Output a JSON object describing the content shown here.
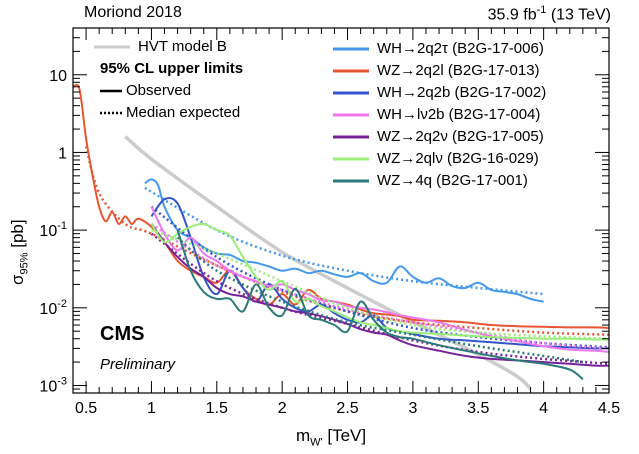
{
  "header": {
    "left_text": "Moriond 2018",
    "lumi_value": "35.9 fb",
    "lumi_exp": "-1",
    "lumi_energy": " (13 TeV)"
  },
  "labels": {
    "experiment": "CMS",
    "status": "Preliminary"
  },
  "legend_left": {
    "hvt": "HVT model B",
    "heading": "95% CL upper limits",
    "observed": "Observed",
    "expected": "Median expected"
  },
  "chart_data": {
    "type": "line",
    "title": "",
    "xlabel": "m_W' [TeV]",
    "xlabel_main": "m",
    "xlabel_sub": "W'",
    "xlabel_unit": " [TeV]",
    "ylabel": "σ_95% [pb]",
    "ylabel_main": "σ",
    "ylabel_sub": "95%",
    "ylabel_unit": " [pb]",
    "xlim": [
      0.4,
      4.5
    ],
    "ylim": [
      0.0008,
      40
    ],
    "yscale": "log",
    "x_ticks": [
      0.5,
      1,
      1.5,
      2,
      2.5,
      3,
      3.5,
      4,
      4.5
    ],
    "y_ticks": [
      {
        "v": 0.001,
        "base": "10",
        "exp": "-3"
      },
      {
        "v": 0.01,
        "base": "10",
        "exp": "-2"
      },
      {
        "v": 0.1,
        "base": "10",
        "exp": "-1"
      },
      {
        "v": 1,
        "base": "1",
        "exp": ""
      },
      {
        "v": 10,
        "base": "10",
        "exp": ""
      }
    ],
    "hvt": {
      "name": "HVT model B",
      "color": "#cccccc",
      "x": [
        0.8,
        1.0,
        1.5,
        2.0,
        2.5,
        3.0,
        3.5,
        3.8,
        3.9
      ],
      "y": [
        1.6,
        0.82,
        0.2,
        0.052,
        0.018,
        0.0066,
        0.0025,
        0.0013,
        0.0009
      ]
    },
    "series": [
      {
        "name": "WH→2q2τ (B2G-17-006)",
        "color": "#4499ee",
        "obs": {
          "x": [
            0.95,
            1.0,
            1.05,
            1.1,
            1.2,
            1.3,
            1.4,
            1.5,
            1.6,
            1.7,
            1.8,
            1.9,
            2.0,
            2.1,
            2.2,
            2.3,
            2.4,
            2.5,
            2.6,
            2.7,
            2.8,
            2.9,
            3.0,
            3.1,
            3.2,
            3.3,
            3.4,
            3.5,
            3.6,
            3.7,
            3.8,
            3.9,
            4.0
          ],
          "y": [
            0.4,
            0.45,
            0.38,
            0.2,
            0.1,
            0.08,
            0.06,
            0.05,
            0.048,
            0.04,
            0.038,
            0.034,
            0.03,
            0.032,
            0.028,
            0.03,
            0.027,
            0.025,
            0.028,
            0.022,
            0.021,
            0.034,
            0.025,
            0.021,
            0.024,
            0.019,
            0.018,
            0.021,
            0.017,
            0.016,
            0.015,
            0.013,
            0.012
          ]
        },
        "exp": {
          "x": [
            0.95,
            1.5,
            2.0,
            2.5,
            3.0,
            3.5,
            4.0
          ],
          "y": [
            0.35,
            0.1,
            0.047,
            0.03,
            0.022,
            0.018,
            0.015
          ]
        }
      },
      {
        "name": "WZ→2q2l (B2G-17-013)",
        "color": "#e85533",
        "obs": {
          "x": [
            0.4,
            0.45,
            0.5,
            0.55,
            0.6,
            0.65,
            0.7,
            0.75,
            0.8,
            0.85,
            0.9,
            1.0,
            1.1,
            1.2,
            1.3,
            1.4,
            1.5,
            1.6,
            1.7,
            1.8,
            1.9,
            2.0,
            2.1,
            2.2,
            2.3,
            2.4,
            2.5,
            2.6,
            2.7,
            2.8,
            2.9,
            3.0,
            3.2,
            3.4,
            3.6,
            3.8,
            4.0,
            4.2,
            4.4,
            4.5
          ],
          "y": [
            7,
            6.5,
            1.5,
            0.5,
            0.2,
            0.13,
            0.17,
            0.12,
            0.15,
            0.12,
            0.14,
            0.11,
            0.07,
            0.04,
            0.03,
            0.025,
            0.021,
            0.03,
            0.018,
            0.013,
            0.011,
            0.015,
            0.011,
            0.017,
            0.013,
            0.012,
            0.011,
            0.0095,
            0.0085,
            0.0082,
            0.0078,
            0.007,
            0.0068,
            0.0065,
            0.006,
            0.0058,
            0.0057,
            0.0056,
            0.0056,
            0.0055
          ]
        },
        "exp": {
          "x": [
            0.5,
            0.6,
            0.8,
            1.0,
            1.5,
            2.0,
            2.5,
            3.0,
            3.5,
            4.0,
            4.5
          ],
          "y": [
            1.2,
            0.3,
            0.12,
            0.09,
            0.035,
            0.016,
            0.009,
            0.0065,
            0.0055,
            0.0048,
            0.0045
          ]
        }
      },
      {
        "name": "WH→2q2b (B2G-17-002)",
        "color": "#3355cc",
        "obs": {
          "x": [
            1.0,
            1.1,
            1.2,
            1.3,
            1.4,
            1.5,
            1.6,
            1.7,
            1.8,
            1.9,
            2.0,
            2.1,
            2.2,
            2.3,
            2.4,
            2.5,
            2.6,
            2.7,
            2.8,
            2.9,
            3.0,
            3.2,
            3.4,
            3.6,
            3.8,
            4.0,
            4.2,
            4.4,
            4.5
          ],
          "y": [
            0.15,
            0.25,
            0.22,
            0.08,
            0.025,
            0.015,
            0.03,
            0.018,
            0.012,
            0.02,
            0.013,
            0.01,
            0.009,
            0.011,
            0.0085,
            0.007,
            0.0065,
            0.008,
            0.0055,
            0.005,
            0.0046,
            0.004,
            0.0038,
            0.0036,
            0.0034,
            0.0032,
            0.0031,
            0.003,
            0.003
          ]
        },
        "exp": {
          "x": [
            1.0,
            1.5,
            2.0,
            2.5,
            3.0,
            3.5,
            4.0,
            4.5
          ],
          "y": [
            0.2,
            0.045,
            0.017,
            0.009,
            0.0055,
            0.0042,
            0.0035,
            0.0031
          ]
        }
      },
      {
        "name": "WH→lν2b (B2G-17-004)",
        "color": "#ee77ee",
        "obs": {
          "x": [
            1.0,
            1.1,
            1.2,
            1.3,
            1.4,
            1.5,
            1.6,
            1.7,
            1.8,
            1.9,
            2.0,
            2.1,
            2.2,
            2.3,
            2.4,
            2.5,
            2.6,
            2.7,
            2.8,
            2.9,
            3.0,
            3.2,
            3.4,
            3.6,
            3.8,
            4.0,
            4.2,
            4.4,
            4.5
          ],
          "y": [
            0.2,
            0.09,
            0.055,
            0.08,
            0.05,
            0.04,
            0.03,
            0.025,
            0.022,
            0.019,
            0.02,
            0.017,
            0.015,
            0.0125,
            0.012,
            0.0105,
            0.01,
            0.0095,
            0.0088,
            0.008,
            0.0075,
            0.0065,
            0.0052,
            0.0043,
            0.0037,
            0.0032,
            0.0029,
            0.0028,
            0.0027
          ]
        },
        "exp": {
          "x": [
            1.0,
            1.5,
            2.0,
            2.5,
            3.0,
            3.5,
            4.0,
            4.5
          ],
          "y": [
            0.12,
            0.035,
            0.017,
            0.0095,
            0.0065,
            0.0048,
            0.0035,
            0.003
          ]
        }
      },
      {
        "name": "WZ→2q2ν (B2G-17-005)",
        "color": "#772299",
        "obs": {
          "x": [
            1.0,
            1.1,
            1.2,
            1.3,
            1.4,
            1.5,
            1.6,
            1.7,
            1.8,
            1.9,
            2.0,
            2.1,
            2.2,
            2.3,
            2.4,
            2.5,
            2.6,
            2.7,
            2.8,
            2.9,
            3.0,
            3.2,
            3.4,
            3.6,
            3.8,
            4.0,
            4.2,
            4.4,
            4.5
          ],
          "y": [
            0.12,
            0.07,
            0.045,
            0.032,
            0.025,
            0.018,
            0.015,
            0.014,
            0.012,
            0.011,
            0.01,
            0.009,
            0.0085,
            0.0078,
            0.007,
            0.0062,
            0.0053,
            0.0048,
            0.0045,
            0.0038,
            0.0033,
            0.0028,
            0.0024,
            0.0022,
            0.0021,
            0.002,
            0.0019,
            0.0018,
            0.0018
          ]
        },
        "exp": {
          "x": [
            1.0,
            1.5,
            2.0,
            2.5,
            3.0,
            3.5,
            4.0,
            4.5
          ],
          "y": [
            0.09,
            0.022,
            0.01,
            0.0062,
            0.0038,
            0.0027,
            0.0022,
            0.0019
          ]
        }
      },
      {
        "name": "WZ→2qlν (B2G-16-029)",
        "color": "#99ee77",
        "obs": {
          "x": [
            1.0,
            1.1,
            1.2,
            1.3,
            1.4,
            1.5,
            1.6,
            1.7,
            1.8,
            1.9,
            2.0,
            2.1,
            2.2,
            2.3,
            2.4,
            2.5,
            2.6,
            2.7,
            2.8,
            2.9,
            3.0,
            3.2,
            3.4,
            3.6,
            3.8,
            4.0,
            4.2,
            4.4,
            4.5
          ],
          "y": [
            0.12,
            0.07,
            0.09,
            0.11,
            0.12,
            0.1,
            0.085,
            0.045,
            0.025,
            0.017,
            0.022,
            0.012,
            0.013,
            0.0105,
            0.009,
            0.0075,
            0.0065,
            0.006,
            0.0055,
            0.005,
            0.0048,
            0.0046,
            0.0044,
            0.0042,
            0.0041,
            0.004,
            0.004,
            0.0039,
            0.0039
          ]
        },
        "exp": {
          "x": [
            1.0,
            1.5,
            2.0,
            2.5,
            3.0,
            3.5,
            4.0,
            4.5
          ],
          "y": [
            0.1,
            0.05,
            0.022,
            0.01,
            0.006,
            0.0048,
            0.0043,
            0.004
          ]
        }
      },
      {
        "name": "WZ→4q (B2G-17-001)",
        "color": "#2a7a7a",
        "obs": {
          "x": [
            1.2,
            1.3,
            1.4,
            1.5,
            1.6,
            1.7,
            1.8,
            1.9,
            2.0,
            2.1,
            2.2,
            2.3,
            2.4,
            2.5,
            2.6,
            2.7,
            2.8,
            2.9,
            3.0,
            3.2,
            3.4,
            3.6,
            3.8,
            4.0,
            4.2,
            4.3
          ],
          "y": [
            0.1,
            0.03,
            0.016,
            0.013,
            0.013,
            0.009,
            0.02,
            0.01,
            0.008,
            0.0175,
            0.008,
            0.007,
            0.006,
            0.005,
            0.012,
            0.007,
            0.0048,
            0.0042,
            0.004,
            0.0033,
            0.0028,
            0.0024,
            0.0021,
            0.0019,
            0.0016,
            0.0012
          ]
        },
        "exp": {
          "x": [
            1.2,
            1.5,
            2.0,
            2.5,
            3.0,
            3.5,
            4.0,
            4.3
          ],
          "y": [
            0.08,
            0.03,
            0.012,
            0.0065,
            0.0045,
            0.0032,
            0.0024,
            0.002
          ]
        }
      }
    ]
  }
}
